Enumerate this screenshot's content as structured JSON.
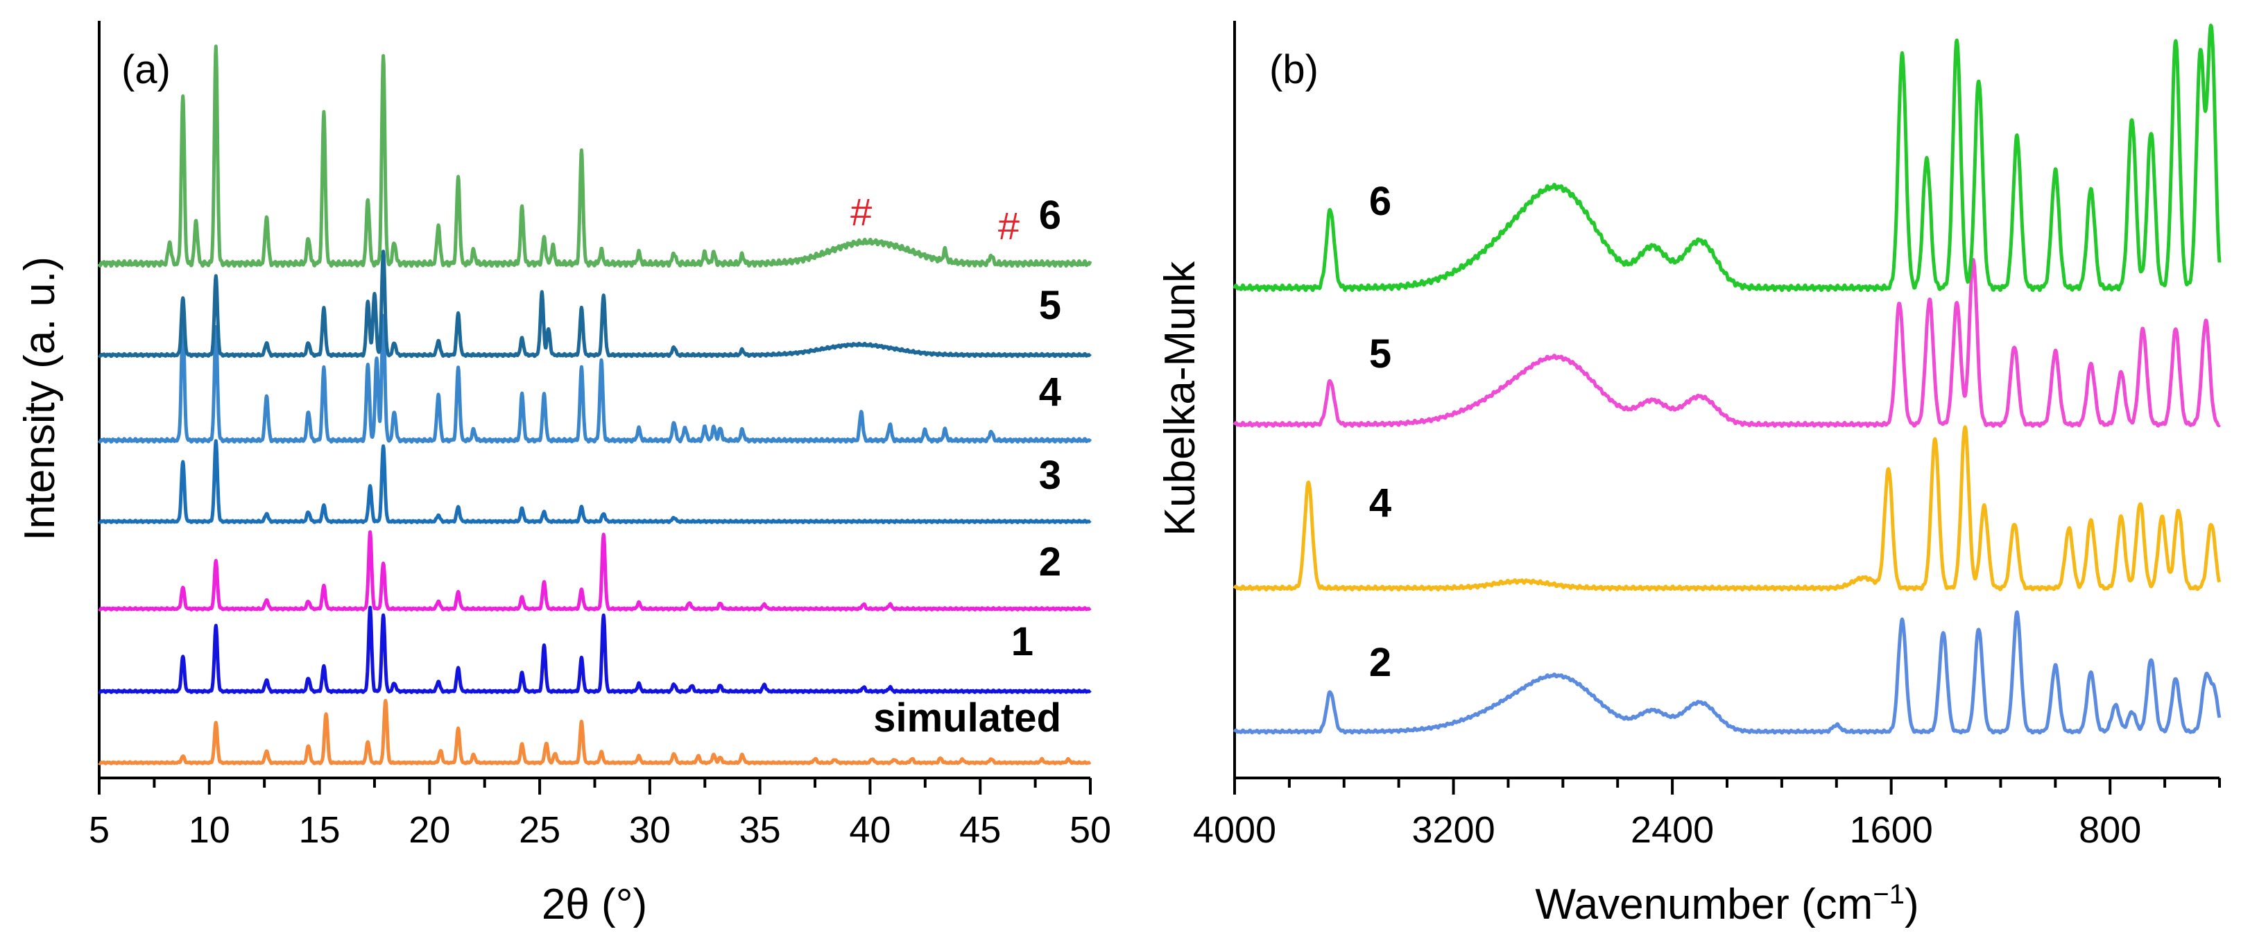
{
  "chart_data": [
    {
      "type": "line",
      "panel": "(a)",
      "xlabel": "2θ (°)",
      "ylabel": "Intensity (a. u.)",
      "xlim": [
        5,
        50
      ],
      "xticks": [
        5,
        10,
        15,
        20,
        25,
        30,
        35,
        40,
        45,
        50
      ],
      "xtick_labels": [
        "5",
        "10",
        "15",
        "20",
        "25",
        "30",
        "35",
        "40",
        "45",
        "50"
      ],
      "series": [
        {
          "name": "simulated",
          "color": "#f58a3a",
          "offset": 0,
          "peaks": [
            [
              8.8,
              10
            ],
            [
              10.3,
              60
            ],
            [
              12.6,
              18
            ],
            [
              14.5,
              26
            ],
            [
              15.3,
              75
            ],
            [
              17.2,
              32
            ],
            [
              18.0,
              95
            ],
            [
              20.5,
              18
            ],
            [
              21.3,
              52
            ],
            [
              22.0,
              12
            ],
            [
              24.2,
              28
            ],
            [
              25.3,
              30
            ],
            [
              25.7,
              14
            ],
            [
              26.9,
              62
            ],
            [
              27.8,
              16
            ],
            [
              29.5,
              10
            ],
            [
              31.1,
              14
            ],
            [
              32.2,
              10
            ],
            [
              32.9,
              12
            ],
            [
              33.2,
              8
            ],
            [
              34.2,
              12
            ],
            [
              37.5,
              6
            ],
            [
              38.4,
              5
            ],
            [
              40.1,
              6
            ],
            [
              41.1,
              5
            ],
            [
              41.9,
              6
            ],
            [
              43.2,
              7
            ],
            [
              44.2,
              5
            ],
            [
              45.5,
              6
            ],
            [
              47.8,
              5
            ],
            [
              49.0,
              5
            ]
          ],
          "hump": []
        },
        {
          "name": "1",
          "color": "#1313e0",
          "offset": 1,
          "peaks": [
            [
              8.8,
              42
            ],
            [
              10.3,
              78
            ],
            [
              12.6,
              14
            ],
            [
              14.5,
              16
            ],
            [
              15.2,
              30
            ],
            [
              17.3,
              100
            ],
            [
              17.9,
              92
            ],
            [
              18.4,
              10
            ],
            [
              20.4,
              12
            ],
            [
              21.3,
              28
            ],
            [
              24.2,
              22
            ],
            [
              25.2,
              55
            ],
            [
              26.9,
              40
            ],
            [
              27.9,
              92
            ],
            [
              29.5,
              9
            ],
            [
              31.1,
              9
            ],
            [
              31.9,
              7
            ],
            [
              33.2,
              7
            ],
            [
              35.2,
              8
            ],
            [
              39.7,
              5
            ],
            [
              40.9,
              5
            ]
          ],
          "hump": []
        },
        {
          "name": "2",
          "color": "#ee22dd",
          "offset": 2,
          "peaks": [
            [
              8.8,
              28
            ],
            [
              10.3,
              62
            ],
            [
              12.6,
              12
            ],
            [
              14.5,
              10
            ],
            [
              15.2,
              30
            ],
            [
              17.3,
              100
            ],
            [
              17.9,
              60
            ],
            [
              20.4,
              10
            ],
            [
              21.3,
              22
            ],
            [
              24.2,
              15
            ],
            [
              25.2,
              35
            ],
            [
              26.9,
              25
            ],
            [
              27.9,
              98
            ],
            [
              29.5,
              8
            ],
            [
              31.8,
              8
            ],
            [
              33.2,
              7
            ],
            [
              35.2,
              6
            ],
            [
              39.7,
              6
            ],
            [
              40.9,
              6
            ]
          ],
          "hump": []
        },
        {
          "name": "3",
          "color": "#1a6fb8",
          "offset": 3,
          "peaks": [
            [
              8.8,
              75
            ],
            [
              10.3,
              100
            ],
            [
              12.6,
              10
            ],
            [
              14.5,
              12
            ],
            [
              15.2,
              20
            ],
            [
              17.3,
              44
            ],
            [
              17.9,
              95
            ],
            [
              20.4,
              8
            ],
            [
              21.3,
              18
            ],
            [
              24.2,
              16
            ],
            [
              25.2,
              12
            ],
            [
              26.9,
              18
            ],
            [
              27.9,
              10
            ],
            [
              31.1,
              5
            ]
          ],
          "hump": []
        },
        {
          "name": "4",
          "color": "#3a86cc",
          "offset": 4,
          "peaks": [
            [
              8.8,
              90
            ],
            [
              10.3,
              85
            ],
            [
              12.6,
              34
            ],
            [
              14.5,
              22
            ],
            [
              15.2,
              55
            ],
            [
              17.2,
              58
            ],
            [
              17.6,
              62
            ],
            [
              17.9,
              95
            ],
            [
              18.4,
              22
            ],
            [
              20.4,
              35
            ],
            [
              21.3,
              55
            ],
            [
              22.0,
              8
            ],
            [
              24.2,
              35
            ],
            [
              25.2,
              35
            ],
            [
              26.9,
              55
            ],
            [
              27.8,
              60
            ],
            [
              29.5,
              9
            ],
            [
              31.1,
              14
            ],
            [
              31.6,
              10
            ],
            [
              32.5,
              10
            ],
            [
              32.9,
              10
            ],
            [
              33.2,
              9
            ],
            [
              34.2,
              8
            ],
            [
              39.6,
              22
            ],
            [
              40.9,
              12
            ],
            [
              42.5,
              8
            ],
            [
              43.4,
              8
            ],
            [
              45.5,
              7
            ]
          ],
          "hump": []
        },
        {
          "name": "5",
          "color": "#1c6898",
          "offset": 5,
          "peaks": [
            [
              8.8,
              55
            ],
            [
              10.3,
              75
            ],
            [
              12.6,
              12
            ],
            [
              14.5,
              12
            ],
            [
              15.2,
              45
            ],
            [
              17.2,
              52
            ],
            [
              17.5,
              60
            ],
            [
              17.9,
              100
            ],
            [
              18.4,
              12
            ],
            [
              20.4,
              14
            ],
            [
              21.3,
              40
            ],
            [
              24.2,
              16
            ],
            [
              25.1,
              60
            ],
            [
              25.4,
              25
            ],
            [
              26.9,
              45
            ],
            [
              27.9,
              58
            ],
            [
              31.1,
              8
            ],
            [
              34.2,
              5
            ]
          ],
          "hump": [
            [
              39.5,
              1.6,
              10
            ]
          ]
        },
        {
          "name": "6",
          "color": "#5bb05b",
          "offset": 6,
          "peaks": [
            [
              8.2,
              10
            ],
            [
              8.8,
              78
            ],
            [
              9.4,
              20
            ],
            [
              10.3,
              100
            ],
            [
              12.6,
              22
            ],
            [
              14.5,
              12
            ],
            [
              15.2,
              70
            ],
            [
              17.2,
              30
            ],
            [
              17.9,
              97
            ],
            [
              18.4,
              10
            ],
            [
              20.4,
              18
            ],
            [
              21.3,
              40
            ],
            [
              22.0,
              6
            ],
            [
              24.2,
              26
            ],
            [
              25.2,
              12
            ],
            [
              25.6,
              8
            ],
            [
              26.9,
              52
            ],
            [
              27.8,
              6
            ],
            [
              29.5,
              5
            ],
            [
              31.1,
              5
            ],
            [
              32.5,
              5
            ],
            [
              32.9,
              5
            ],
            [
              34.2,
              4
            ],
            [
              43.4,
              5
            ],
            [
              45.5,
              4
            ]
          ],
          "hump": [
            [
              39.6,
              1.5,
              9
            ],
            [
              41.5,
              1.2,
              3
            ]
          ]
        }
      ],
      "series_labels": [
        "simulated",
        "1",
        "2",
        "3",
        "4",
        "5",
        "6"
      ],
      "annotations": [
        {
          "text": "#",
          "x": 39.6,
          "color": "#e8202a"
        },
        {
          "text": "#",
          "x": 46.3,
          "color": "#e8202a"
        }
      ]
    },
    {
      "type": "line",
      "panel": "(b)",
      "xlabel": "Wavenumber (cm−1)",
      "xlabel_main": "Wavenumber (cm",
      "xlabel_sup": "−1",
      "xlabel_close": ")",
      "ylabel": "Kubelka-Munk",
      "xlim": [
        4000,
        400
      ],
      "xticks": [
        4000,
        3200,
        2400,
        1600,
        800
      ],
      "xtick_labels": [
        "4000",
        "3200",
        "2400",
        "1600",
        "800"
      ],
      "series": [
        {
          "name": "2",
          "color": "#5b8be0",
          "offset": 0,
          "peaks": [
            [
              3650,
              30
            ],
            [
              1560,
              85
            ],
            [
              1410,
              75
            ],
            [
              1280,
              78
            ],
            [
              1140,
              90
            ],
            [
              1000,
              50
            ],
            [
              870,
              45
            ],
            [
              780,
              20
            ],
            [
              720,
              15
            ],
            [
              650,
              55
            ],
            [
              560,
              40
            ],
            [
              450,
              40
            ],
            [
              420,
              30
            ],
            [
              1800,
              5
            ]
          ],
          "broad": [
            [
              2910,
              180,
              24
            ],
            [
              2790,
              120,
              22
            ],
            [
              2470,
              50,
              14
            ],
            [
              2300,
              60,
              22
            ]
          ]
        },
        {
          "name": "4",
          "color": "#f5b816",
          "offset": 1,
          "peaks": [
            [
              3730,
              62
            ],
            [
              1610,
              70
            ],
            [
              1440,
              88
            ],
            [
              1330,
              95
            ],
            [
              1260,
              48
            ],
            [
              1150,
              38
            ],
            [
              950,
              35
            ],
            [
              870,
              40
            ],
            [
              760,
              42
            ],
            [
              690,
              50
            ],
            [
              610,
              42
            ],
            [
              550,
              46
            ],
            [
              430,
              38
            ]
          ],
          "broad": [
            [
              2950,
              100,
              4
            ],
            [
              1700,
              40,
              6
            ]
          ]
        },
        {
          "name": "5",
          "color": "#ef4bd5",
          "offset": 2,
          "peaks": [
            [
              3650,
              25
            ],
            [
              1570,
              70
            ],
            [
              1460,
              72
            ],
            [
              1360,
              70
            ],
            [
              1300,
              95
            ],
            [
              1150,
              45
            ],
            [
              1000,
              42
            ],
            [
              870,
              35
            ],
            [
              760,
              30
            ],
            [
              680,
              55
            ],
            [
              560,
              55
            ],
            [
              450,
              60
            ]
          ],
          "broad": [
            [
              2910,
              180,
              22
            ],
            [
              2790,
              120,
              20
            ],
            [
              2470,
              50,
              12
            ],
            [
              2300,
              60,
              16
            ]
          ]
        },
        {
          "name": "6",
          "color": "#23c82a",
          "offset": 3,
          "peaks": [
            [
              3650,
              30
            ],
            [
              1560,
              90
            ],
            [
              1470,
              50
            ],
            [
              1360,
              95
            ],
            [
              1280,
              80
            ],
            [
              1140,
              58
            ],
            [
              1000,
              45
            ],
            [
              870,
              38
            ],
            [
              720,
              65
            ],
            [
              650,
              60
            ],
            [
              560,
              95
            ],
            [
              470,
              90
            ],
            [
              430,
              100
            ]
          ],
          "broad": [
            [
              2910,
              180,
              22
            ],
            [
              2790,
              120,
              20
            ],
            [
              2470,
              50,
              14
            ],
            [
              2300,
              60,
              18
            ]
          ]
        }
      ],
      "series_labels": [
        "2",
        "4",
        "5",
        "6"
      ]
    }
  ]
}
